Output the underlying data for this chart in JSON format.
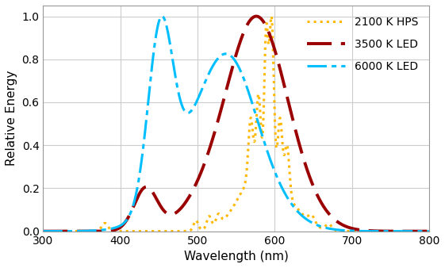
{
  "xlabel": "Wavelength (nm)",
  "ylabel": "Relative Energy",
  "xlim": [
    300,
    800
  ],
  "ylim": [
    0,
    1.05
  ],
  "xticks": [
    300,
    400,
    500,
    600,
    700,
    800
  ],
  "yticks": [
    0,
    0.2,
    0.4,
    0.6,
    0.8,
    1
  ],
  "legend_labels": [
    "2100 K HPS",
    "3500 K LED",
    "6000 K LED"
  ],
  "hps_color": "#FFB800",
  "led3500_color": "#9B0000",
  "led6000_color": "#00BFFF",
  "background_color": "#ffffff",
  "grid_color": "#cccccc"
}
